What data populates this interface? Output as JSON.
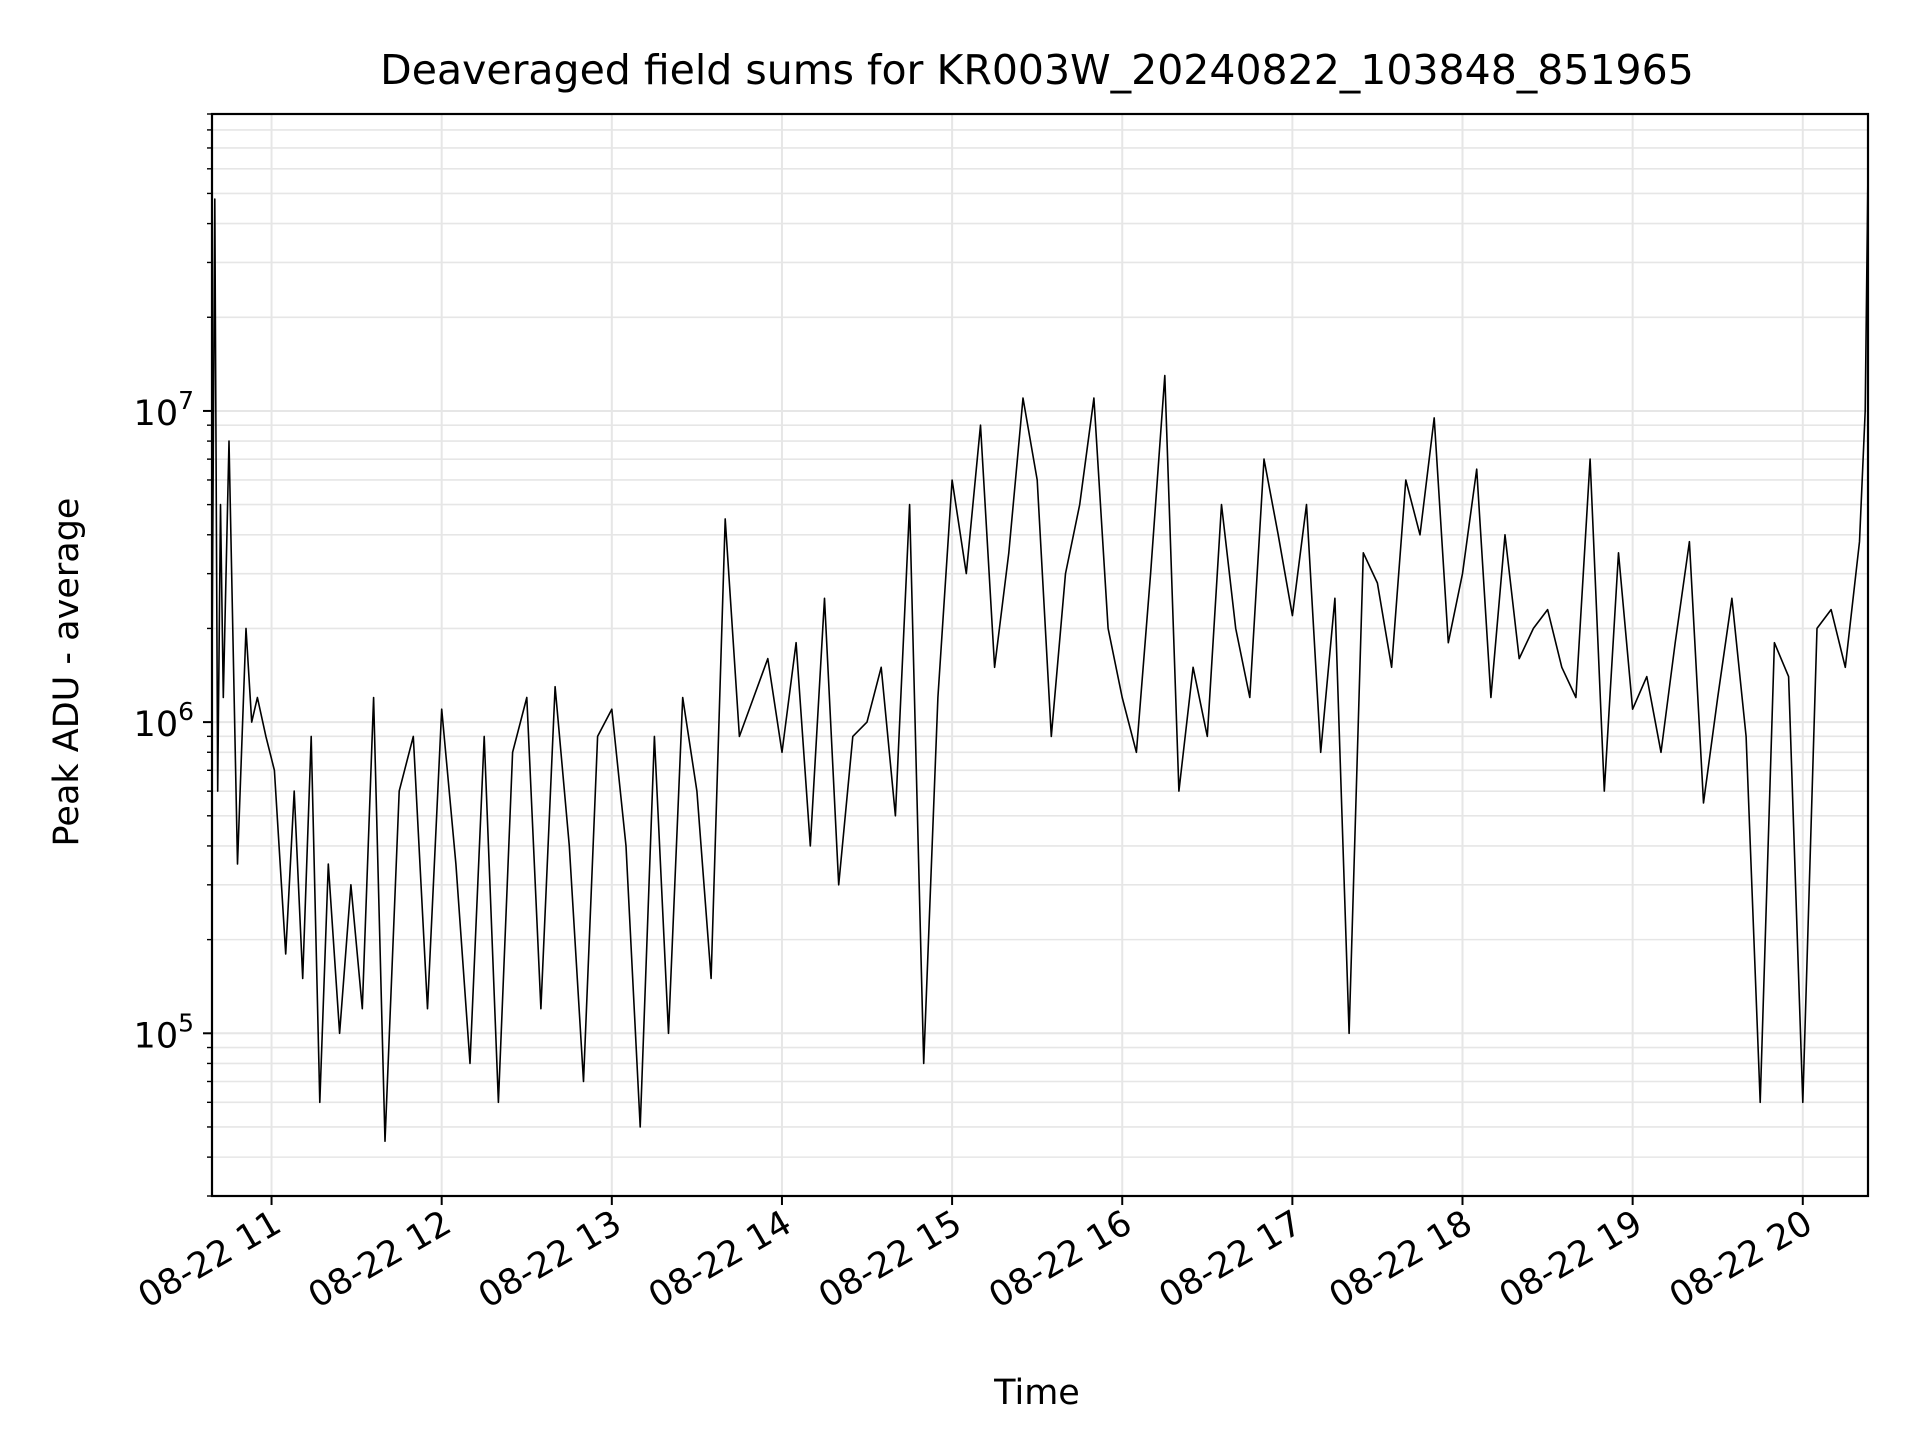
{
  "chart_data": {
    "type": "line",
    "title": "Deaveraged field sums for KR003W_20240822_103848_851965",
    "xlabel": "Time",
    "ylabel": "Peak ADU - average",
    "yscale": "log",
    "xlim": [
      "2024-08-22 10:39",
      "2024-08-22 20:23"
    ],
    "ylim": [
      30000,
      90000000
    ],
    "grid": true,
    "grid_minor": true,
    "x_ticks": [
      {
        "value": "2024-08-22 11:00",
        "label": "08-22 11"
      },
      {
        "value": "2024-08-22 12:00",
        "label": "08-22 12"
      },
      {
        "value": "2024-08-22 13:00",
        "label": "08-22 13"
      },
      {
        "value": "2024-08-22 14:00",
        "label": "08-22 14"
      },
      {
        "value": "2024-08-22 15:00",
        "label": "08-22 15"
      },
      {
        "value": "2024-08-22 16:00",
        "label": "08-22 16"
      },
      {
        "value": "2024-08-22 17:00",
        "label": "08-22 17"
      },
      {
        "value": "2024-08-22 18:00",
        "label": "08-22 18"
      },
      {
        "value": "2024-08-22 19:00",
        "label": "08-22 19"
      },
      {
        "value": "2024-08-22 20:00",
        "label": "08-22 20"
      }
    ],
    "y_ticks": [
      {
        "value": 100000,
        "base": "10",
        "exp": "5"
      },
      {
        "value": 1000000,
        "base": "10",
        "exp": "6"
      },
      {
        "value": 10000000,
        "base": "10",
        "exp": "7"
      }
    ],
    "line_color": "#000000",
    "grid_color": "#e6e6e6",
    "series": [
      {
        "x": [
          "2024-08-22 10:39",
          "2024-08-22 10:40",
          "2024-08-22 10:41",
          "2024-08-22 10:42",
          "2024-08-22 10:43",
          "2024-08-22 10:45",
          "2024-08-22 10:48",
          "2024-08-22 10:51",
          "2024-08-22 10:53",
          "2024-08-22 10:55",
          "2024-08-22 10:58",
          "2024-08-22 11:01",
          "2024-08-22 11:05",
          "2024-08-22 11:08",
          "2024-08-22 11:11",
          "2024-08-22 11:14",
          "2024-08-22 11:17",
          "2024-08-22 11:20",
          "2024-08-22 11:24",
          "2024-08-22 11:28",
          "2024-08-22 11:32",
          "2024-08-22 11:36",
          "2024-08-22 11:40",
          "2024-08-22 11:45",
          "2024-08-22 11:50",
          "2024-08-22 11:55",
          "2024-08-22 12:00",
          "2024-08-22 12:05",
          "2024-08-22 12:10",
          "2024-08-22 12:15",
          "2024-08-22 12:20",
          "2024-08-22 12:25",
          "2024-08-22 12:30",
          "2024-08-22 12:35",
          "2024-08-22 12:40",
          "2024-08-22 12:45",
          "2024-08-22 12:50",
          "2024-08-22 12:55",
          "2024-08-22 13:00",
          "2024-08-22 13:05",
          "2024-08-22 13:10",
          "2024-08-22 13:15",
          "2024-08-22 13:20",
          "2024-08-22 13:25",
          "2024-08-22 13:30",
          "2024-08-22 13:35",
          "2024-08-22 13:40",
          "2024-08-22 13:45",
          "2024-08-22 13:50",
          "2024-08-22 13:55",
          "2024-08-22 14:00",
          "2024-08-22 14:05",
          "2024-08-22 14:10",
          "2024-08-22 14:15",
          "2024-08-22 14:20",
          "2024-08-22 14:25",
          "2024-08-22 14:30",
          "2024-08-22 14:35",
          "2024-08-22 14:40",
          "2024-08-22 14:45",
          "2024-08-22 14:50",
          "2024-08-22 14:55",
          "2024-08-22 15:00",
          "2024-08-22 15:05",
          "2024-08-22 15:10",
          "2024-08-22 15:15",
          "2024-08-22 15:20",
          "2024-08-22 15:25",
          "2024-08-22 15:30",
          "2024-08-22 15:35",
          "2024-08-22 15:40",
          "2024-08-22 15:45",
          "2024-08-22 15:50",
          "2024-08-22 15:55",
          "2024-08-22 16:00",
          "2024-08-22 16:05",
          "2024-08-22 16:10",
          "2024-08-22 16:15",
          "2024-08-22 16:20",
          "2024-08-22 16:25",
          "2024-08-22 16:30",
          "2024-08-22 16:35",
          "2024-08-22 16:40",
          "2024-08-22 16:45",
          "2024-08-22 16:50",
          "2024-08-22 16:55",
          "2024-08-22 17:00",
          "2024-08-22 17:05",
          "2024-08-22 17:10",
          "2024-08-22 17:15",
          "2024-08-22 17:20",
          "2024-08-22 17:25",
          "2024-08-22 17:30",
          "2024-08-22 17:35",
          "2024-08-22 17:40",
          "2024-08-22 17:45",
          "2024-08-22 17:50",
          "2024-08-22 17:55",
          "2024-08-22 18:00",
          "2024-08-22 18:05",
          "2024-08-22 18:10",
          "2024-08-22 18:15",
          "2024-08-22 18:20",
          "2024-08-22 18:25",
          "2024-08-22 18:30",
          "2024-08-22 18:35",
          "2024-08-22 18:40",
          "2024-08-22 18:45",
          "2024-08-22 18:50",
          "2024-08-22 18:55",
          "2024-08-22 19:00",
          "2024-08-22 19:05",
          "2024-08-22 19:10",
          "2024-08-22 19:15",
          "2024-08-22 19:20",
          "2024-08-22 19:25",
          "2024-08-22 19:30",
          "2024-08-22 19:35",
          "2024-08-22 19:40",
          "2024-08-22 19:45",
          "2024-08-22 19:50",
          "2024-08-22 19:55",
          "2024-08-22 20:00",
          "2024-08-22 20:05",
          "2024-08-22 20:10",
          "2024-08-22 20:15",
          "2024-08-22 20:20",
          "2024-08-22 20:22",
          "2024-08-22 20:23"
        ],
        "y": [
          1500000,
          48000000,
          600000,
          5000000,
          1200000,
          8000000,
          350000,
          2000000,
          1000000,
          1200000,
          900000,
          700000,
          180000,
          600000,
          150000,
          900000,
          60000,
          350000,
          100000,
          300000,
          120000,
          1200000,
          45000,
          600000,
          900000,
          120000,
          1100000,
          350000,
          80000,
          900000,
          60000,
          800000,
          1200000,
          120000,
          1300000,
          400000,
          70000,
          900000,
          1100000,
          400000,
          50000,
          900000,
          100000,
          1200000,
          600000,
          150000,
          4500000,
          900000,
          1200000,
          1600000,
          800000,
          1800000,
          400000,
          2500000,
          300000,
          900000,
          1000000,
          1500000,
          500000,
          5000000,
          80000,
          1200000,
          6000000,
          3000000,
          9000000,
          1500000,
          3500000,
          11000000,
          6000000,
          900000,
          3000000,
          5000000,
          11000000,
          2000000,
          1200000,
          800000,
          3000000,
          13000000,
          600000,
          1500000,
          900000,
          5000000,
          2000000,
          1200000,
          7000000,
          4000000,
          2200000,
          5000000,
          800000,
          2500000,
          100000,
          3500000,
          2800000,
          1500000,
          6000000,
          4000000,
          9500000,
          1800000,
          3000000,
          6500000,
          1200000,
          4000000,
          1600000,
          2000000,
          2300000,
          1500000,
          1200000,
          7000000,
          600000,
          3500000,
          1100000,
          1400000,
          800000,
          1800000,
          3800000,
          550000,
          1200000,
          2500000,
          900000,
          60000,
          1800000,
          1400000,
          60000,
          2000000,
          2300000,
          1500000,
          3800000,
          10000000,
          60000000
        ]
      }
    ]
  }
}
